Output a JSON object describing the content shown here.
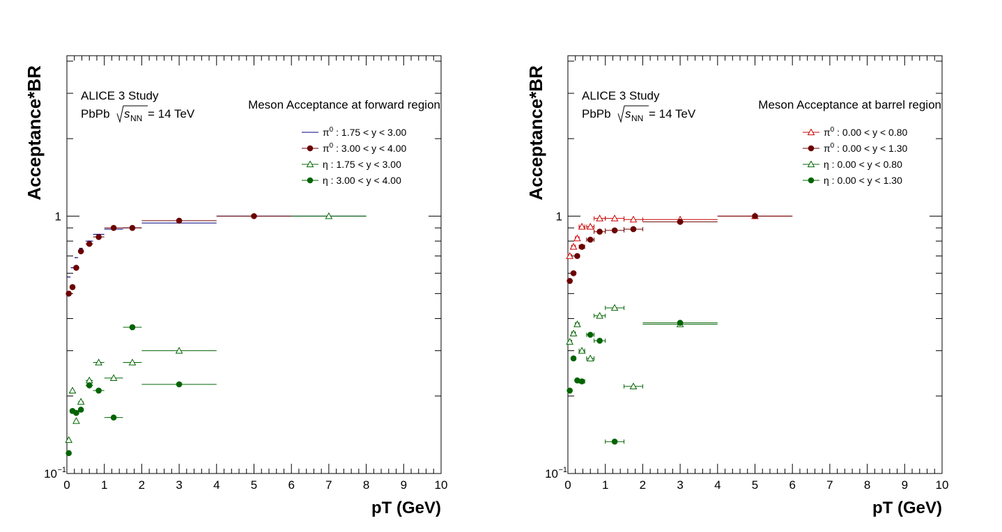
{
  "chart_data": [
    {
      "type": "scatter",
      "xlabel": "pT (GeV)",
      "ylabel": "Acceptance*BR",
      "xlim": [
        0,
        10
      ],
      "ylim": [
        0.1,
        4.2
      ],
      "yscale": "log",
      "y_tick_labels": {
        "major_1": "1",
        "major_01_base": "10",
        "major_01_exp": "−1"
      },
      "x_tick_labels": [
        "0",
        "1",
        "2",
        "3",
        "4",
        "5",
        "6",
        "7",
        "8",
        "9",
        "10"
      ],
      "study": "ALICE 3 Study",
      "system": "PbPb",
      "energy": "= 14 TeV",
      "region_label": "Meson Acceptance at forward region",
      "legend_position": "top-right",
      "series": [
        {
          "name": "π⁰ : 1.75 < y < 3.00",
          "particle": "π",
          "sup": "0",
          "range": ": 1.75 < y < 3.00",
          "marker": "dash",
          "color": "#000080",
          "points": [
            [
              0.05,
              0.58,
              0.05
            ],
            [
              0.15,
              0.63,
              0.05
            ],
            [
              0.25,
              0.69,
              0.05
            ],
            [
              0.375,
              0.75,
              0.075
            ],
            [
              0.6,
              0.8,
              0.1
            ],
            [
              0.85,
              0.85,
              0.15
            ],
            [
              1.25,
              0.89,
              0.25
            ],
            [
              1.75,
              0.9,
              0.25
            ],
            [
              3.0,
              0.94,
              1.0
            ],
            [
              5.0,
              1.0,
              1.0
            ],
            [
              7.0,
              1.0,
              1.0
            ]
          ]
        },
        {
          "name": "π⁰ : 3.00 < y < 4.00",
          "particle": "π",
          "sup": "0",
          "range": ": 3.00 < y < 4.00",
          "marker": "circle",
          "color": "#6b0000",
          "points": [
            [
              0.05,
              0.5,
              0.05
            ],
            [
              0.15,
              0.53,
              0.05
            ],
            [
              0.25,
              0.63,
              0.05
            ],
            [
              0.375,
              0.73,
              0.075
            ],
            [
              0.6,
              0.78,
              0.1
            ],
            [
              0.85,
              0.83,
              0.15
            ],
            [
              1.25,
              0.9,
              0.25
            ],
            [
              1.75,
              0.9,
              0.25
            ],
            [
              3.0,
              0.96,
              1.0
            ],
            [
              5.0,
              1.0,
              1.0
            ]
          ]
        },
        {
          "name": "η : 1.75 < y < 3.00",
          "particle": "η",
          "sup": "",
          "range": ": 1.75 < y < 3.00",
          "marker": "triangle-open",
          "color": "#006400",
          "points": [
            [
              0.05,
              0.135,
              0.05
            ],
            [
              0.15,
              0.21,
              0.05
            ],
            [
              0.25,
              0.16,
              0.05
            ],
            [
              0.375,
              0.19,
              0.075
            ],
            [
              0.6,
              0.23,
              0.1
            ],
            [
              0.85,
              0.27,
              0.15
            ],
            [
              1.25,
              0.235,
              0.25
            ],
            [
              1.75,
              0.27,
              0.25
            ],
            [
              3.0,
              0.3,
              1.0
            ],
            [
              7.0,
              1.0,
              1.0
            ]
          ]
        },
        {
          "name": "η : 3.00 < y < 4.00",
          "particle": "η",
          "sup": "",
          "range": ": 3.00 < y < 4.00",
          "marker": "circle",
          "color": "#006400",
          "points": [
            [
              0.05,
              0.12,
              0.05
            ],
            [
              0.15,
              0.175,
              0.05
            ],
            [
              0.25,
              0.172,
              0.05
            ],
            [
              0.375,
              0.177,
              0.075
            ],
            [
              0.6,
              0.22,
              0.1
            ],
            [
              0.85,
              0.21,
              0.15
            ],
            [
              1.25,
              0.165,
              0.25
            ],
            [
              1.75,
              0.37,
              0.25
            ],
            [
              3.0,
              0.222,
              1.0
            ]
          ]
        }
      ]
    },
    {
      "type": "scatter",
      "xlabel": "pT (GeV)",
      "ylabel": "Acceptance*BR",
      "xlim": [
        0,
        10
      ],
      "ylim": [
        0.1,
        4.2
      ],
      "yscale": "log",
      "y_tick_labels": {
        "major_1": "1",
        "major_01_base": "10",
        "major_01_exp": "−1"
      },
      "x_tick_labels": [
        "0",
        "1",
        "2",
        "3",
        "4",
        "5",
        "6",
        "7",
        "8",
        "9",
        "10"
      ],
      "study": "ALICE 3 Study",
      "system": "PbPb",
      "energy": "= 14 TeV",
      "region_label": "Meson Acceptance at barrel region",
      "legend_position": "top-right",
      "series": [
        {
          "name": "π⁰ : 0.00 < y < 0.80",
          "particle": "π",
          "sup": "0",
          "range": ": 0.00 < y < 0.80",
          "marker": "triangle-open",
          "color": "#cc0000",
          "points": [
            [
              0.05,
              0.7,
              0.05
            ],
            [
              0.15,
              0.76,
              0.05
            ],
            [
              0.25,
              0.82,
              0.05
            ],
            [
              0.375,
              0.91,
              0.075
            ],
            [
              0.6,
              0.91,
              0.1
            ],
            [
              0.85,
              0.98,
              0.15
            ],
            [
              1.25,
              0.98,
              0.25
            ],
            [
              1.75,
              0.97,
              0.25
            ],
            [
              3.0,
              0.97,
              1.0
            ],
            [
              5.0,
              1.0,
              1.0
            ]
          ]
        },
        {
          "name": "π⁰ : 0.00 < y < 1.30",
          "particle": "π",
          "sup": "0",
          "range": ": 0.00 < y < 1.30",
          "marker": "circle",
          "color": "#6b0000",
          "points": [
            [
              0.05,
              0.56,
              0.05
            ],
            [
              0.15,
              0.6,
              0.05
            ],
            [
              0.25,
              0.7,
              0.05
            ],
            [
              0.375,
              0.76,
              0.075
            ],
            [
              0.6,
              0.81,
              0.1
            ],
            [
              0.85,
              0.87,
              0.15
            ],
            [
              1.25,
              0.88,
              0.25
            ],
            [
              1.75,
              0.89,
              0.25
            ],
            [
              3.0,
              0.95,
              1.0
            ],
            [
              5.0,
              1.0,
              1.0
            ]
          ]
        },
        {
          "name": "η : 0.00 < y < 0.80",
          "particle": "η",
          "sup": "",
          "range": ": 0.00 < y < 0.80",
          "marker": "triangle-open",
          "color": "#006400",
          "points": [
            [
              0.05,
              0.325,
              0.05
            ],
            [
              0.15,
              0.35,
              0.05
            ],
            [
              0.25,
              0.38,
              0.05
            ],
            [
              0.375,
              0.3,
              0.075
            ],
            [
              0.6,
              0.28,
              0.1
            ],
            [
              0.85,
              0.41,
              0.15
            ],
            [
              1.25,
              0.44,
              0.25
            ],
            [
              1.75,
              0.218,
              0.25
            ],
            [
              3.0,
              0.38,
              1.0
            ]
          ]
        },
        {
          "name": "η : 0.00 < y < 1.30",
          "particle": "η",
          "sup": "",
          "range": ": 0.00 < y < 1.30",
          "marker": "circle",
          "color": "#006400",
          "points": [
            [
              0.05,
              0.21,
              0.05
            ],
            [
              0.15,
              0.28,
              0.05
            ],
            [
              0.25,
              0.23,
              0.05
            ],
            [
              0.375,
              0.228,
              0.075
            ],
            [
              0.6,
              0.346,
              0.1
            ],
            [
              0.85,
              0.328,
              0.15
            ],
            [
              1.25,
              0.133,
              0.25
            ],
            [
              3.0,
              0.385,
              1.0
            ]
          ]
        }
      ]
    }
  ]
}
